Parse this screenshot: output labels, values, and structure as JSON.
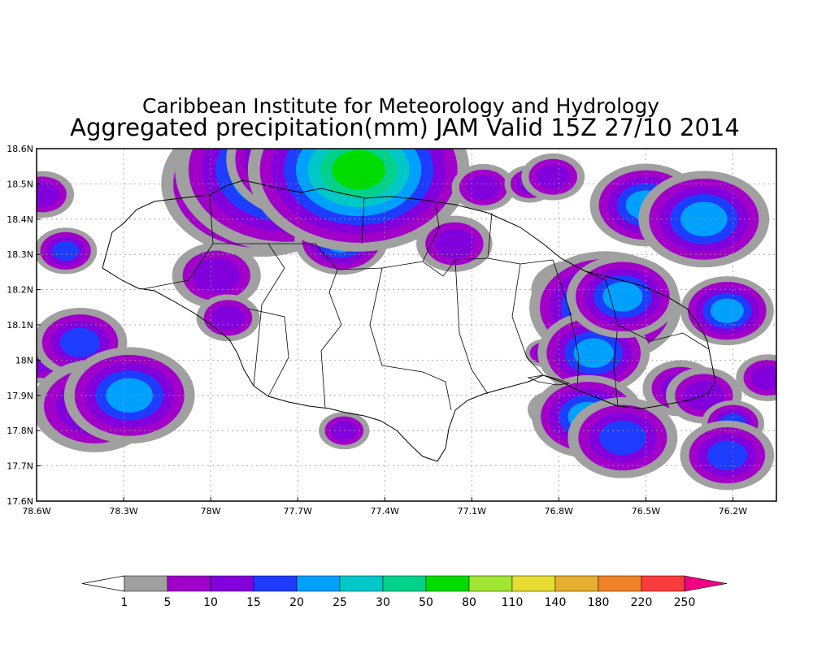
{
  "title": "Caribbean Institute for Meteorology and Hydrology",
  "subtitle": "Aggregated precipitation(mm) JAM Valid 15Z 27/10 2014",
  "map": {
    "lon_range": [
      -78.6,
      -76.05
    ],
    "lat_range": [
      17.6,
      18.6
    ],
    "grid": true,
    "lon_ticks": [
      {
        "value": -78.6,
        "label": "78.6W"
      },
      {
        "value": -78.3,
        "label": "78.3W"
      },
      {
        "value": -78.0,
        "label": "78W"
      },
      {
        "value": -77.7,
        "label": "77.7W"
      },
      {
        "value": -77.4,
        "label": "77.4W"
      },
      {
        "value": -77.1,
        "label": "77.1W"
      },
      {
        "value": -76.8,
        "label": "76.8W"
      },
      {
        "value": -76.5,
        "label": "76.5W"
      },
      {
        "value": -76.2,
        "label": "76.2W"
      }
    ],
    "lat_ticks": [
      {
        "value": 18.6,
        "label": "18.6N"
      },
      {
        "value": 18.5,
        "label": "18.5N"
      },
      {
        "value": 18.4,
        "label": "18.4N"
      },
      {
        "value": 18.3,
        "label": "18.3N"
      },
      {
        "value": 18.2,
        "label": "18.2N"
      },
      {
        "value": 18.1,
        "label": "18.1N"
      },
      {
        "value": 18.0,
        "label": "18N"
      },
      {
        "value": 17.9,
        "label": "17.9N"
      },
      {
        "value": 17.8,
        "label": "17.8N"
      },
      {
        "value": 17.7,
        "label": "17.7N"
      },
      {
        "value": 17.6,
        "label": "17.6N"
      }
    ]
  },
  "colorbar": {
    "below_color": "#ffffff",
    "levels": [
      "1",
      "5",
      "10",
      "15",
      "20",
      "25",
      "30",
      "50",
      "80",
      "110",
      "140",
      "180",
      "220",
      "250"
    ],
    "colors": [
      "#a0a0a0",
      "#a000c8",
      "#8200dc",
      "#1e3cff",
      "#00a0ff",
      "#00c8c8",
      "#00d28c",
      "#00dc00",
      "#a0e632",
      "#e6dc32",
      "#e6af2d",
      "#f08228",
      "#fa3c3c",
      "#f00082"
    ]
  },
  "precip_cells": [
    {
      "lon": -78.58,
      "lat": 18.47,
      "r": 0.05,
      "level": 2
    },
    {
      "lon": -78.58,
      "lat": 18.0,
      "r": 0.05,
      "level": 2
    },
    {
      "lon": -78.5,
      "lat": 18.31,
      "r": 0.04,
      "level": 3
    },
    {
      "lon": -78.45,
      "lat": 18.05,
      "r": 0.06,
      "level": 3
    },
    {
      "lon": -78.4,
      "lat": 17.87,
      "r": 0.08,
      "level": 3
    },
    {
      "lon": -78.28,
      "lat": 17.9,
      "r": 0.07,
      "level": 4
    },
    {
      "lon": -77.98,
      "lat": 18.24,
      "r": 0.07,
      "level": 2
    },
    {
      "lon": -77.94,
      "lat": 18.12,
      "r": 0.05,
      "level": 2
    },
    {
      "lon": -77.9,
      "lat": 18.55,
      "r": 0.09,
      "level": 2
    },
    {
      "lon": -77.83,
      "lat": 18.5,
      "r": 0.08,
      "level": 6
    },
    {
      "lon": -77.74,
      "lat": 18.54,
      "r": 0.09,
      "level": 6
    },
    {
      "lon": -77.66,
      "lat": 18.57,
      "r": 0.06,
      "level": 7
    },
    {
      "lon": -77.55,
      "lat": 18.34,
      "r": 0.05,
      "level": 4
    },
    {
      "lon": -77.49,
      "lat": 18.54,
      "r": 0.08,
      "level": 7
    },
    {
      "lon": -77.54,
      "lat": 17.8,
      "r": 0.04,
      "level": 2
    },
    {
      "lon": -77.06,
      "lat": 18.49,
      "r": 0.05,
      "level": 2
    },
    {
      "lon": -77.16,
      "lat": 18.33,
      "r": 0.06,
      "level": 2
    },
    {
      "lon": -76.9,
      "lat": 18.5,
      "r": 0.04,
      "level": 2
    },
    {
      "lon": -76.82,
      "lat": 18.52,
      "r": 0.05,
      "level": 2
    },
    {
      "lon": -76.76,
      "lat": 18.2,
      "r": 0.05,
      "level": 3
    },
    {
      "lon": -76.85,
      "lat": 18.02,
      "r": 0.03,
      "level": 2
    },
    {
      "lon": -76.82,
      "lat": 17.86,
      "r": 0.04,
      "level": 2
    },
    {
      "lon": -76.64,
      "lat": 18.15,
      "r": 0.07,
      "level": 5
    },
    {
      "lon": -76.68,
      "lat": 18.02,
      "r": 0.06,
      "level": 4
    },
    {
      "lon": -76.7,
      "lat": 17.84,
      "r": 0.06,
      "level": 4
    },
    {
      "lon": -76.58,
      "lat": 18.18,
      "r": 0.06,
      "level": 4
    },
    {
      "lon": -76.58,
      "lat": 17.78,
      "r": 0.07,
      "level": 3
    },
    {
      "lon": -76.5,
      "lat": 18.44,
      "r": 0.06,
      "level": 4
    },
    {
      "lon": -76.3,
      "lat": 18.4,
      "r": 0.07,
      "level": 4
    },
    {
      "lon": -76.38,
      "lat": 17.92,
      "r": 0.06,
      "level": 2
    },
    {
      "lon": -76.3,
      "lat": 17.9,
      "r": 0.06,
      "level": 2
    },
    {
      "lon": -76.22,
      "lat": 18.14,
      "r": 0.05,
      "level": 4
    },
    {
      "lon": -76.2,
      "lat": 17.82,
      "r": 0.04,
      "level": 3
    },
    {
      "lon": -76.22,
      "lat": 17.73,
      "r": 0.06,
      "level": 3
    },
    {
      "lon": -76.08,
      "lat": 17.95,
      "r": 0.05,
      "level": 2
    }
  ]
}
